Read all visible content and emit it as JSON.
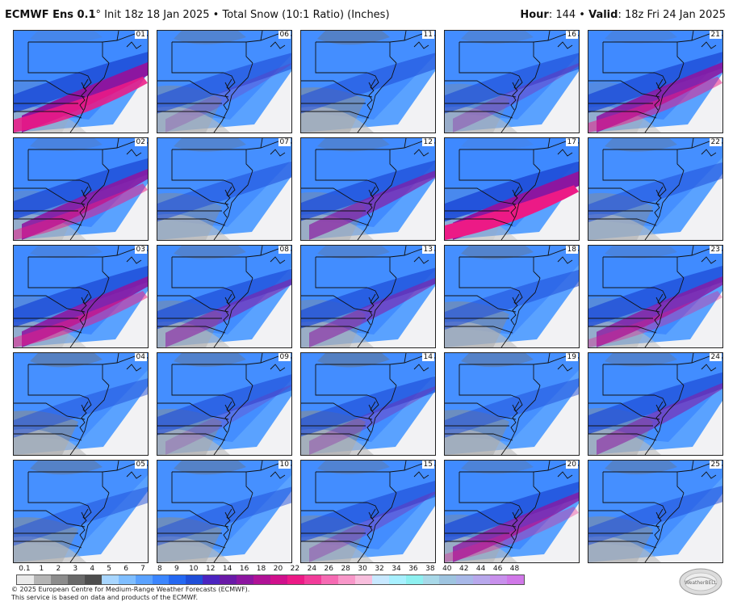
{
  "header": {
    "model": "ECMWF Ens 0.1",
    "degree": "°",
    "init": "Init 18z 18 Jan 2025",
    "bullet": "•",
    "product": "Total Snow (10:1 Ratio) (Inches)",
    "hour_label": "Hour",
    "hour_value": ": 144",
    "valid_label": "Valid",
    "valid_value": ": 18z Fri 24 Jan 2025"
  },
  "members": [
    {
      "label": "01",
      "intensity": 0.95,
      "band": 0.55,
      "gray": 0.2
    },
    {
      "label": "06",
      "intensity": 0.55,
      "band": 0.5,
      "gray": 0.45
    },
    {
      "label": "11",
      "intensity": 0.5,
      "band": 0.5,
      "gray": 0.55
    },
    {
      "label": "16",
      "intensity": 0.6,
      "band": 0.5,
      "gray": 0.35
    },
    {
      "label": "21",
      "intensity": 0.85,
      "band": 0.55,
      "gray": 0.25
    },
    {
      "label": "02",
      "intensity": 0.85,
      "band": 0.6,
      "gray": 0.3
    },
    {
      "label": "07",
      "intensity": 0.45,
      "band": 0.45,
      "gray": 0.45
    },
    {
      "label": "12",
      "intensity": 0.75,
      "band": 0.5,
      "gray": 0.4
    },
    {
      "label": "17",
      "intensity": 1.0,
      "band": 0.45,
      "gray": 0.15
    },
    {
      "label": "22",
      "intensity": 0.4,
      "band": 0.4,
      "gray": 0.45
    },
    {
      "label": "03",
      "intensity": 0.85,
      "band": 0.6,
      "gray": 0.25
    },
    {
      "label": "08",
      "intensity": 0.7,
      "band": 0.45,
      "gray": 0.45
    },
    {
      "label": "13",
      "intensity": 0.7,
      "band": 0.5,
      "gray": 0.4
    },
    {
      "label": "18",
      "intensity": 0.45,
      "band": 0.4,
      "gray": 0.5
    },
    {
      "label": "23",
      "intensity": 0.8,
      "band": 0.6,
      "gray": 0.3
    },
    {
      "label": "04",
      "intensity": 0.35,
      "band": 0.35,
      "gray": 0.6
    },
    {
      "label": "09",
      "intensity": 0.55,
      "band": 0.55,
      "gray": 0.5
    },
    {
      "label": "14",
      "intensity": 0.6,
      "band": 0.45,
      "gray": 0.6
    },
    {
      "label": "19",
      "intensity": 0.35,
      "band": 0.35,
      "gray": 0.55
    },
    {
      "label": "24",
      "intensity": 0.7,
      "band": 0.65,
      "gray": 0.45
    },
    {
      "label": "05",
      "intensity": 0.35,
      "band": 0.3,
      "gray": 0.55
    },
    {
      "label": "10",
      "intensity": 0.35,
      "band": 0.3,
      "gray": 0.55
    },
    {
      "label": "15",
      "intensity": 0.6,
      "band": 0.6,
      "gray": 0.45
    },
    {
      "label": "20",
      "intensity": 0.8,
      "band": 0.55,
      "gray": 0.4
    },
    {
      "label": "25",
      "intensity": 0.4,
      "band": 0.35,
      "gray": 0.5
    }
  ],
  "legend": {
    "ticks": [
      "0.1",
      "1",
      "2",
      "3",
      "4",
      "5",
      "6",
      "7",
      "8",
      "9",
      "10",
      "12",
      "14",
      "16",
      "18",
      "20",
      "22",
      "24",
      "26",
      "28",
      "30",
      "32",
      "34",
      "36",
      "38",
      "40",
      "42",
      "44",
      "46",
      "48"
    ],
    "colors": [
      "#e9e9e9",
      "#b5b5b5",
      "#8c8c8c",
      "#696969",
      "#4d4d4d",
      "#a8d6ff",
      "#7fbeff",
      "#5aa2ff",
      "#3b86ff",
      "#2468f2",
      "#1f4ed8",
      "#4b24c0",
      "#6a1aa8",
      "#8c16a0",
      "#b01296",
      "#d0108c",
      "#ec1a86",
      "#f23c9a",
      "#f66ab3",
      "#f897c9",
      "#f8bedd",
      "#c8e8ff",
      "#a8f0ff",
      "#8ef0f0",
      "#a8d8e8",
      "#9ec4e0",
      "#a8b8e8",
      "#b8a8ec",
      "#c890ec",
      "#d078e8"
    ]
  },
  "footer": {
    "line1": "© 2025 European Centre for Medium-Range Weather Forecasts (ECMWF).",
    "line2": "This service is based on data and products of the ECMWF."
  },
  "logo": {
    "text": "WeatherBELL"
  }
}
